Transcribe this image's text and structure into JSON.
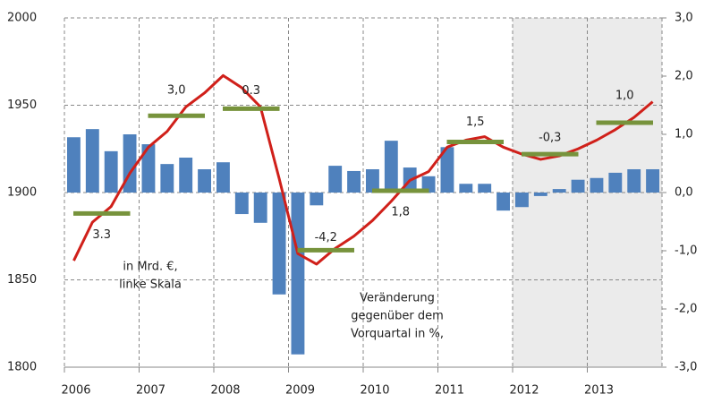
{
  "chart_data": {
    "type": "bar_line",
    "years": [
      "2006",
      "2007",
      "2008",
      "2009",
      "2010",
      "2011",
      "2012",
      "2013"
    ],
    "shaded_years": [
      2012,
      2013
    ],
    "series": [
      {
        "name": "Veränderung gegenüber dem Vorquartal in %,",
        "type": "bar",
        "axis": "y2",
        "color": "#4f81bd",
        "values": [
          0.95,
          1.09,
          0.71,
          1.0,
          0.83,
          0.49,
          0.6,
          0.4,
          0.52,
          -0.37,
          -0.52,
          -1.75,
          -2.78,
          -0.22,
          0.46,
          0.37,
          0.4,
          0.89,
          0.43,
          0.28,
          0.78,
          0.15,
          0.15,
          -0.31,
          -0.25,
          -0.06,
          0.06,
          0.22,
          0.25,
          0.34,
          0.4,
          0.4
        ]
      },
      {
        "name": "in Mrd. €, linke Skala",
        "type": "line",
        "color": "#d0201a",
        "values": [
          1861,
          1883,
          1892,
          1911,
          1926,
          1935,
          1949,
          1957,
          1967,
          1960,
          1949,
          1908,
          1865,
          1859,
          1868,
          1875,
          1884,
          1895,
          1907,
          1912,
          1926,
          1930,
          1932,
          1926,
          1922,
          1919,
          1921,
          1925,
          1930,
          1936,
          1943,
          1952
        ]
      },
      {
        "type": "annual",
        "color": "#77933c",
        "values": [
          1888,
          1944,
          1948,
          1867,
          1901,
          1929,
          1922,
          1940
        ]
      }
    ],
    "annual_growth": {
      "values": [
        3.3,
        3.0,
        0.3,
        -4.2,
        1.8,
        1.5,
        -0.3,
        1.0
      ],
      "value_labels": [
        "3.3",
        "3,0",
        "0.3",
        "-4,2",
        "1,8",
        "1,5",
        "-0,3",
        "1,0"
      ]
    },
    "annotations": [
      [
        "in Mrd. €,",
        "linke Skala"
      ],
      [
        "Veränderung",
        "gegenüber dem",
        "Vorquartal in %,"
      ]
    ],
    "ylim": [
      1800,
      2000
    ],
    "yticks": [
      1800,
      1850,
      1900,
      1950,
      2000
    ],
    "y2lim": [
      -3,
      3
    ],
    "y2ticks": [
      {
        "value": -3,
        "label": "-3,0"
      },
      {
        "value": -2,
        "label": "-2,0"
      },
      {
        "value": -1,
        "label": "-1,0"
      },
      {
        "value": 0,
        "label": "0,0"
      },
      {
        "value": 1,
        "label": "1,0"
      },
      {
        "value": 2,
        "label": "2,0"
      },
      {
        "value": 3,
        "label": "3,0"
      }
    ],
    "grid": true
  }
}
